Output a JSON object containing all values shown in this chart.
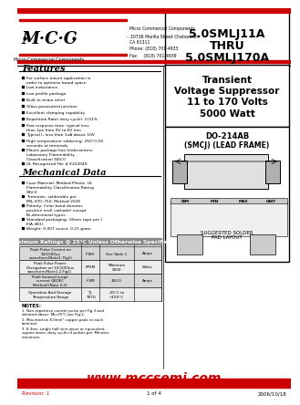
{
  "white": "#ffffff",
  "black": "#000000",
  "red": "#cc0000",
  "gray_light": "#dddddd",
  "gray_med": "#aaaaaa",
  "gray_dark": "#888888",
  "title_part1": "5.0SMLJ11A",
  "title_thru": "THRU",
  "title_part2": "5.0SMLJ170A",
  "subtitle1": "Transient",
  "subtitle2": "Voltage Suppressor",
  "subtitle3": "11 to 170 Volts",
  "subtitle4": "5000 Watt",
  "package_title": "DO-214AB",
  "package_sub": "(SMCJ) (LEAD FRAME)",
  "company": "Micro Commercial Components",
  "address1": "20736 Marilla Street Chatsworth",
  "address2": "CA 91311",
  "phone": "Phone: (818) 701-4933",
  "fax": "Fax:    (818) 701-4939",
  "features_title": "Features",
  "features": [
    "For surface mount application in order to optimize board space",
    "Low inductance",
    "Low profile package",
    "Built-in strain relief",
    "Glass passivated junction",
    "Excellent clamping capability",
    "Repetition Rate( duty cycle): 0.01%",
    "Fast response time: typical less than 1ps from 0V to 6V min",
    "Typical I₂ less than 1uA above 10V",
    "High temperature soldering: 250°C/10 seconds at terminals",
    "Plastic package has Underwriters Laboratory Flammability Classification 94V-0",
    "UL Recognized File # E222049"
  ],
  "mech_title": "Mechanical Data",
  "mech_items": [
    "Case Material: Molded Plastic.  UL Flammability Classification Rating 94V-0",
    "Terminals:  solderable per MIL-STD-750, Method 2026",
    "Polarity: Color band denotes positive end( cathode) except Bi-directional types.",
    "Standard packaging: 16mm tape per ( EIA 481).",
    "Weight: 0.007 ounce, 0.21 gram"
  ],
  "ratings_title": "Maximum Ratings @ 25°C Unless Otherwise Specified",
  "table_rows": [
    [
      "Peak Pulse Current on\n10/1000us\nwaveform(Note1, Fig1)",
      "IPSM",
      "See Table 1",
      "Amps"
    ],
    [
      "Peak Pulse Power\nDissipation on 10/1000us\nwaveform(Note1,2,Fig1)",
      "PPSM",
      "Minimum\n5000",
      "Watts"
    ],
    [
      "Peak forward surge\ncurrent (JEDEC\nMethod)(Note 2,3)",
      "IFSM",
      "300.0",
      "Amps"
    ],
    [
      "Operation And Storage\nTemperature Range",
      "TJ,\nTSTG",
      "-55°C to\n+150°C",
      ""
    ]
  ],
  "notes_title": "NOTES:",
  "notes": [
    "1.  Non-repetitive current pulse per Fig.3 and derated above TA=25°C per Fig.2.",
    "2.  Mounted on 8.0mm² copper pads to each terminal.",
    "3.  8.3ms, single half sine-wave or equivalent square wave, duty cycle=4 pulses per. Minutes maximum."
  ],
  "footer_url": "www.mccsemi.com",
  "revision": "Revision: 1",
  "page": "1 of 4",
  "date": "2006/10/18",
  "mcc_logo_text": "M·C·C",
  "mcc_sub": "Micro-Commercial Components",
  "suggested_solder": "SUGGESTED SOLDER\nPAD LAYOUT"
}
